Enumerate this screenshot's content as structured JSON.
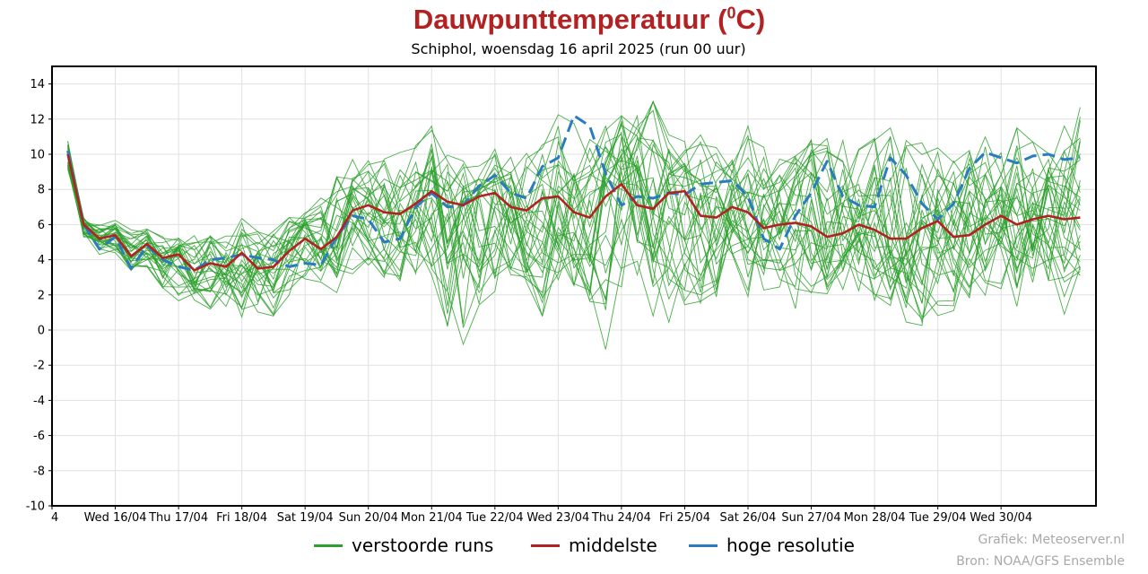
{
  "title": "Dauwpunttemperatuur (",
  "title_degree": "0",
  "title_unit": "C)",
  "subtitle": "Schiphol, woensdag 16 april 2025 (run 00 uur)",
  "legend": {
    "ensemble_label": "verstoorde runs",
    "median_label": "middelste",
    "hires_label": "hoge resolutie"
  },
  "credits": {
    "line1": "Grafiek: Meteoserver.nl",
    "line2": "Bron: NOAA/GFS Ensemble"
  },
  "colors": {
    "ensemble": "#2ca02c",
    "median": "#b22222",
    "hires": "#2b7bbf",
    "title": "#b22222",
    "grid": "#e0e0e0"
  },
  "chart_data": {
    "type": "line",
    "x_unit": "days from 16/04 00:00",
    "xlim": [
      -1,
      15.5
    ],
    "ylim": [
      -10,
      15
    ],
    "yticks": [
      -10,
      -8,
      -6,
      -4,
      -2,
      0,
      2,
      4,
      6,
      8,
      10,
      12,
      14
    ],
    "grid": true,
    "legend_position": "bottom",
    "x_tick_labels": [
      {
        "x": -1,
        "label": "4"
      },
      {
        "x": 0,
        "label": "Wed 16/04"
      },
      {
        "x": 1,
        "label": "Thu 17/04"
      },
      {
        "x": 2,
        "label": "Fri 18/04"
      },
      {
        "x": 3,
        "label": "Sat 19/04"
      },
      {
        "x": 4,
        "label": "Sun 20/04"
      },
      {
        "x": 5,
        "label": "Mon 21/04"
      },
      {
        "x": 6,
        "label": "Tue 22/04"
      },
      {
        "x": 7,
        "label": "Wed 23/04"
      },
      {
        "x": 8,
        "label": "Thu 24/04"
      },
      {
        "x": 9,
        "label": "Fri 25/04"
      },
      {
        "x": 10,
        "label": "Sat 26/04"
      },
      {
        "x": 11,
        "label": "Sun 27/04"
      },
      {
        "x": 12,
        "label": "Mon 28/04"
      },
      {
        "x": 13,
        "label": "Tue 29/04"
      },
      {
        "x": 14,
        "label": "Wed 30/04"
      }
    ],
    "series": [
      {
        "name": "middelste",
        "x": [
          -0.75,
          -0.5,
          -0.25,
          0,
          0.25,
          0.5,
          0.75,
          1,
          1.25,
          1.5,
          1.75,
          2,
          2.25,
          2.5,
          2.75,
          3,
          3.25,
          3.5,
          3.75,
          4,
          4.25,
          4.5,
          4.75,
          5,
          5.25,
          5.5,
          5.75,
          6,
          6.25,
          6.5,
          6.75,
          7,
          7.25,
          7.5,
          7.75,
          8,
          8.25,
          8.5,
          8.75,
          9,
          9.25,
          9.5,
          9.75,
          10,
          10.25,
          10.5,
          10.75,
          11,
          11.25,
          11.5,
          11.75,
          12,
          12.25,
          12.5,
          12.75,
          13,
          13.25,
          13.5,
          13.75,
          14,
          14.25,
          14.5,
          14.75,
          15,
          15.25
        ],
        "values": [
          10.0,
          6.0,
          5.2,
          5.4,
          4.2,
          4.9,
          4.1,
          4.3,
          3.4,
          3.8,
          3.6,
          4.4,
          3.5,
          3.6,
          4.5,
          5.2,
          4.6,
          5.3,
          6.8,
          7.1,
          6.7,
          6.6,
          7.2,
          7.9,
          7.3,
          7.1,
          7.6,
          7.8,
          7.0,
          6.8,
          7.5,
          7.6,
          6.7,
          6.4,
          7.6,
          8.3,
          7.1,
          6.9,
          7.8,
          7.9,
          6.5,
          6.4,
          7.0,
          6.7,
          5.8,
          6.0,
          6.1,
          5.9,
          5.3,
          5.5,
          6.0,
          5.7,
          5.2,
          5.2,
          5.8,
          6.2,
          5.3,
          5.4,
          6.0,
          6.5,
          6.0,
          6.3,
          6.5,
          6.3,
          6.4
        ]
      },
      {
        "name": "hoge resolutie",
        "x": [
          -0.75,
          -0.5,
          -0.25,
          0,
          0.25,
          0.5,
          0.75,
          1,
          1.25,
          1.5,
          1.75,
          2,
          2.25,
          2.5,
          2.75,
          3,
          3.25,
          3.5,
          3.75,
          4,
          4.25,
          4.5,
          4.75,
          5,
          5.25,
          5.5,
          5.75,
          6,
          6.25,
          6.5,
          6.75,
          7,
          7.25,
          7.5,
          7.75,
          8,
          8.25,
          8.5,
          8.75,
          9,
          9.25,
          9.5,
          9.75,
          10,
          10.25,
          10.5,
          10.75,
          11,
          11.25,
          11.5,
          11.75,
          12,
          12.25,
          12.5,
          12.75,
          13,
          13.25,
          13.5,
          13.75,
          14,
          14.25,
          14.5,
          14.75,
          15,
          15.25
        ],
        "values": [
          10.2,
          6.0,
          4.6,
          5.3,
          3.5,
          4.8,
          4.0,
          3.6,
          3.4,
          4.0,
          4.1,
          4.3,
          4.1,
          4.0,
          3.6,
          3.8,
          3.7,
          5.3,
          6.5,
          6.3,
          5.0,
          5.2,
          7.0,
          7.8,
          7.0,
          7.1,
          8.2,
          8.8,
          7.8,
          7.5,
          9.3,
          9.8,
          12.2,
          11.6,
          8.9,
          7.1,
          7.6,
          7.5,
          7.8,
          7.7,
          8.3,
          8.4,
          8.5,
          7.6,
          5.2,
          4.6,
          6.5,
          7.8,
          9.6,
          7.6,
          7.1,
          7.0,
          9.8,
          8.8,
          7.2,
          6.3,
          7.2,
          9.2,
          10.1,
          9.8,
          9.5,
          9.9,
          10.0,
          9.7,
          9.8
        ]
      }
    ],
    "ensemble_members": {
      "count": 30,
      "x": [
        -0.75,
        -0.5,
        -0.25,
        0,
        0.25,
        0.5,
        0.75,
        1,
        1.25,
        1.5,
        1.75,
        2,
        2.25,
        2.5,
        2.75,
        3,
        3.25,
        3.5,
        3.75,
        4,
        4.25,
        4.5,
        4.75,
        5,
        5.25,
        5.5,
        5.75,
        6,
        6.25,
        6.5,
        6.75,
        7,
        7.25,
        7.5,
        7.75,
        8,
        8.25,
        8.5,
        8.75,
        9,
        9.25,
        9.5,
        9.75,
        10,
        10.25,
        10.5,
        10.75,
        11,
        11.25,
        11.5,
        11.75,
        12,
        12.25,
        12.5,
        12.75,
        13,
        13.25,
        13.5,
        13.75,
        14,
        14.25,
        14.5,
        14.75,
        15,
        15.25
      ],
      "spread_start": [
        10.8,
        9.0
      ],
      "envelope_low": [
        8.6,
        5.2,
        4.3,
        4.4,
        3.4,
        3.6,
        2.4,
        1.6,
        1.5,
        1.2,
        0.9,
        0.2,
        0.7,
        0.8,
        2.0,
        2.3,
        2.4,
        2.0,
        3.2,
        3.5,
        3.0,
        2.8,
        2.5,
        2.4,
        0.2,
        -1.6,
        0.2,
        1.2,
        1.8,
        2.0,
        0.8,
        1.5,
        1.7,
        0.5,
        -1.1,
        2.2,
        1.9,
        0.8,
        0.4,
        0.5,
        1.3,
        0.9,
        2.5,
        1.2,
        1.6,
        2.2,
        0.8,
        1.1,
        1.5,
        2.0,
        1.3,
        0.9,
        1.4,
        0.3,
        0.2,
        0.8,
        1.1,
        1.0,
        0.6,
        2.2,
        0.1,
        1.6,
        0.1,
        0.6,
        2.0
      ],
      "envelope_high": [
        11.0,
        6.6,
        6.2,
        6.3,
        5.7,
        5.9,
        5.3,
        5.5,
        5.5,
        5.9,
        5.5,
        6.5,
        5.6,
        5.9,
        6.4,
        6.8,
        7.8,
        9.5,
        9.7,
        9.7,
        10.2,
        10.1,
        10.6,
        11.6,
        10.3,
        10.3,
        9.9,
        10.4,
        10.9,
        11.3,
        11.0,
        12.4,
        11.9,
        11.3,
        11.6,
        12.2,
        12.2,
        13.0,
        11.1,
        10.9,
        11.3,
        10.8,
        10.2,
        11.6,
        10.4,
        10.2,
        9.9,
        10.8,
        10.9,
        11.1,
        10.6,
        10.9,
        11.5,
        12.8,
        10.8,
        10.5,
        10.6,
        11.3,
        11.1,
        10.4,
        11.8,
        10.7,
        11.2,
        11.6,
        13.2
      ]
    }
  }
}
